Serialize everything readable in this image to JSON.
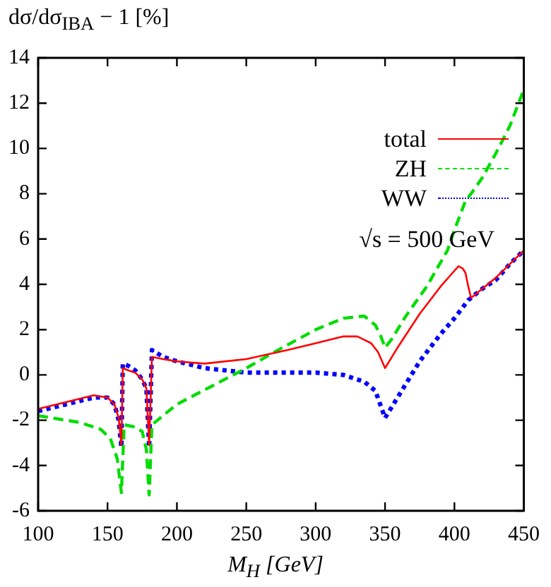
{
  "chart_data": {
    "type": "line",
    "ylabel": "dσ/dσ$_{IBA}$ − 1 [%]",
    "xlabel": "M$_{H}$ [GeV]",
    "annotations": [
      "√s = 500 GeV"
    ],
    "xlim": [
      100,
      450
    ],
    "xticks": [
      100,
      150,
      200,
      250,
      300,
      350,
      400,
      450
    ],
    "ylim": [
      -6,
      14
    ],
    "yticks": [
      -6,
      -4,
      -2,
      0,
      2,
      4,
      6,
      8,
      10,
      12,
      14
    ],
    "grid": false,
    "legend": "top right",
    "marker": "none",
    "series": [
      {
        "name": "total",
        "color": "#ff0000",
        "line_style": "solid",
        "x": [
          100,
          120,
          140,
          150,
          155,
          158,
          160,
          161,
          165,
          170,
          175,
          178,
          180,
          182,
          190,
          200,
          220,
          250,
          280,
          300,
          320,
          330,
          340,
          345,
          350,
          360,
          375,
          390,
          400,
          403,
          406,
          408,
          410,
          412,
          420,
          430,
          440,
          450
        ],
        "values": [
          -1.5,
          -1.2,
          -0.9,
          -1.0,
          -1.3,
          -1.9,
          -3.1,
          0.3,
          0.2,
          0.1,
          -0.2,
          -0.6,
          -3.1,
          0.8,
          0.7,
          0.6,
          0.5,
          0.7,
          1.1,
          1.4,
          1.7,
          1.7,
          1.4,
          1.0,
          0.3,
          1.3,
          2.7,
          3.9,
          4.6,
          4.8,
          4.7,
          4.5,
          3.9,
          3.4,
          3.8,
          4.3,
          4.9,
          5.5
        ]
      },
      {
        "name": "ZH",
        "color": "#00dd00",
        "line_style": "dashed",
        "x": [
          100,
          130,
          145,
          152,
          157,
          160,
          162,
          170,
          175,
          178,
          180,
          182,
          190,
          200,
          225,
          250,
          270,
          300,
          320,
          335,
          343,
          347,
          350,
          355,
          365,
          380,
          395,
          400,
          405,
          408,
          412,
          420,
          430,
          440,
          450
        ],
        "values": [
          -1.8,
          -2.1,
          -2.4,
          -2.8,
          -3.7,
          -5.2,
          -2.2,
          -2.3,
          -2.5,
          -3.3,
          -5.3,
          -2.2,
          -1.8,
          -1.3,
          -0.5,
          0.3,
          1.0,
          2.0,
          2.5,
          2.6,
          2.2,
          1.7,
          1.2,
          1.6,
          2.6,
          3.9,
          5.5,
          6.4,
          7.2,
          7.7,
          8.0,
          8.7,
          9.8,
          11.0,
          12.6
        ]
      },
      {
        "name": "WW",
        "color": "#0000ff",
        "line_style": "dotted",
        "x": [
          100,
          120,
          140,
          150,
          155,
          158,
          160,
          161,
          165,
          170,
          175,
          178,
          180,
          182,
          190,
          200,
          220,
          250,
          280,
          300,
          320,
          335,
          343,
          350,
          360,
          375,
          390,
          400,
          410,
          420,
          430,
          440,
          450
        ],
        "values": [
          -1.6,
          -1.3,
          -1.0,
          -1.0,
          -1.3,
          -2.0,
          -3.2,
          0.5,
          0.4,
          0.2,
          -0.2,
          -0.6,
          -3.2,
          1.1,
          0.8,
          0.6,
          0.3,
          0.1,
          0.1,
          0.1,
          0.0,
          -0.3,
          -0.7,
          -1.9,
          -0.9,
          0.6,
          1.8,
          2.5,
          3.3,
          3.8,
          4.2,
          4.9,
          5.5
        ]
      }
    ]
  }
}
